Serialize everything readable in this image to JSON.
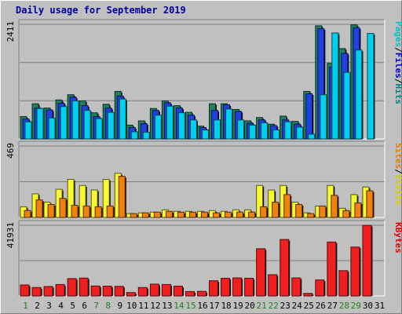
{
  "chart_data": {
    "type": "bar",
    "title": "Daily usage for September 2019",
    "categories": [
      "1",
      "2",
      "3",
      "4",
      "5",
      "6",
      "7",
      "8",
      "9",
      "10",
      "11",
      "12",
      "13",
      "14",
      "15",
      "16",
      "17",
      "18",
      "19",
      "20",
      "21",
      "22",
      "23",
      "24",
      "25",
      "26",
      "27",
      "28",
      "29",
      "30",
      "31"
    ],
    "weekend_days": [
      "1",
      "7",
      "8",
      "14",
      "15",
      "21",
      "22",
      "28",
      "29"
    ],
    "panels": [
      {
        "id": "top",
        "ymax_label": "2411",
        "ymax": 2411,
        "legend": [
          {
            "text": "Pages",
            "color": "#00c0c0"
          },
          {
            "text": "/",
            "color": "#000000"
          },
          {
            "text": "Files",
            "color": "#0000d0"
          },
          {
            "text": "/",
            "color": "#000000"
          },
          {
            "text": "Hits",
            "color": "#008080"
          }
        ],
        "series": [
          {
            "name": "Hits",
            "color": "#208060",
            "values": [
              470,
              740,
              650,
              820,
              930,
              800,
              550,
              730,
              1000,
              290,
              380,
              640,
              800,
              700,
              560,
              270,
              740,
              740,
              620,
              380,
              450,
              310,
              480,
              370,
              1000,
              2380,
              1590,
              1900,
              2400,
              0,
              0
            ]
          },
          {
            "name": "Files",
            "color": "#2040e0",
            "values": [
              420,
              650,
              610,
              750,
              880,
              700,
              470,
              650,
              900,
              240,
              320,
              600,
              760,
              650,
              500,
              240,
              600,
              720,
              580,
              330,
              400,
              280,
              400,
              310,
              950,
              2320,
              1510,
              1800,
              2340,
              0,
              0
            ]
          },
          {
            "name": "Pages",
            "color": "#00d0f0",
            "values": [
              360,
              640,
              440,
              680,
              800,
              600,
              430,
              560,
              840,
              150,
              140,
              500,
              690,
              550,
              400,
              190,
              400,
              630,
              400,
              290,
              340,
              190,
              360,
              250,
              100,
              930,
              2230,
              1400,
              1870,
              2220,
              0
            ]
          }
        ]
      },
      {
        "id": "middle",
        "ymax_label": "469",
        "ymax": 469,
        "legend": [
          {
            "text": "Sites",
            "color": "#e08000"
          },
          {
            "text": "/",
            "color": "#000000"
          },
          {
            "text": "Visits",
            "color": "#d0d000"
          }
        ],
        "series": [
          {
            "name": "Visits",
            "color": "#f8f830",
            "values": [
              70,
              155,
              100,
              185,
              250,
              210,
              180,
              250,
              290,
              25,
              30,
              35,
              50,
              40,
              40,
              40,
              45,
              40,
              50,
              50,
              210,
              180,
              210,
              100,
              30,
              75,
              210,
              60,
              150,
              200,
              0
            ]
          },
          {
            "name": "Sites",
            "color": "#f08010",
            "values": [
              45,
              115,
              85,
              125,
              80,
              75,
              70,
              75,
              270,
              25,
              30,
              35,
              40,
              35,
              35,
              35,
              30,
              35,
              35,
              35,
              70,
              100,
              150,
              85,
              25,
              75,
              145,
              45,
              95,
              175,
              0
            ]
          }
        ]
      },
      {
        "id": "bottom",
        "ymax_label": "41931",
        "ymax": 41931,
        "legend": [
          {
            "text": "KBytes",
            "color": "#e00000"
          }
        ],
        "series": [
          {
            "name": "KBytes",
            "color": "#f02020",
            "values": [
              6500,
              5000,
              5600,
              6800,
              10300,
              10600,
              5900,
              5800,
              5700,
              2000,
              5000,
              7000,
              6800,
              5800,
              2600,
              2700,
              9000,
              10500,
              10700,
              10500,
              28000,
              12600,
              33500,
              10700,
              1500,
              9500,
              32000,
              15000,
              29000,
              41900,
              0
            ]
          }
        ]
      }
    ]
  }
}
